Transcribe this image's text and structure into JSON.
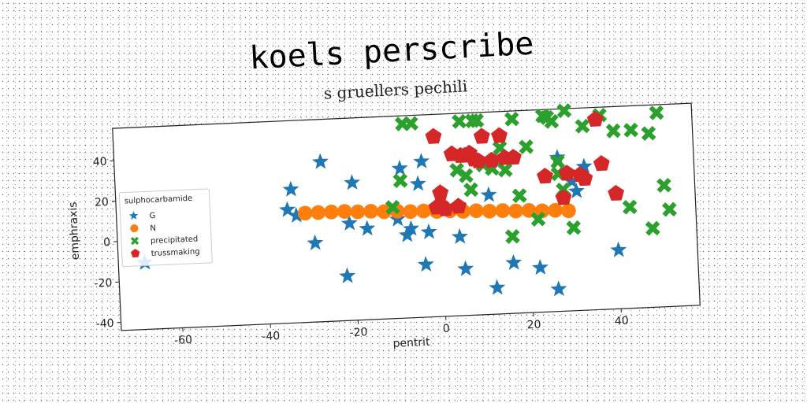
{
  "chart_data": {
    "type": "scatter",
    "title": "koels perscribe",
    "subtitle": "s gruellers pechili",
    "xlabel": "pentrit",
    "ylabel": "emphraxis",
    "xlim": [
      -74,
      58
    ],
    "ylim": [
      -44,
      56
    ],
    "x_ticks": [
      -60,
      -40,
      -20,
      0,
      20,
      40
    ],
    "y_ticks": [
      -40,
      -20,
      0,
      20,
      40
    ],
    "grid": false,
    "legend": {
      "title": "sulphocarbamide",
      "position": "center-left"
    },
    "series": [
      {
        "name": "G",
        "marker": "star",
        "color": "#1f77b4",
        "points": [
          [
            -68,
            -11
          ],
          [
            -35,
            12
          ],
          [
            -34,
            22
          ],
          [
            -33,
            9
          ],
          [
            -27,
            35
          ],
          [
            -29,
            -5
          ],
          [
            -22,
            -22
          ],
          [
            -21,
            4
          ],
          [
            -20,
            24
          ],
          [
            -17,
            1
          ],
          [
            -10,
            5
          ],
          [
            -9,
            30
          ],
          [
            -8,
            -3
          ],
          [
            -7,
            0
          ],
          [
            -5,
            22
          ],
          [
            -4,
            33
          ],
          [
            -3,
            -2
          ],
          [
            -4,
            -18
          ],
          [
            4,
            -5
          ],
          [
            5,
            -21
          ],
          [
            11,
            15
          ],
          [
            12,
            -31
          ],
          [
            16,
            -19
          ],
          [
            22,
            -22
          ],
          [
            26,
            -33
          ],
          [
            27,
            32
          ],
          [
            30,
            20
          ],
          [
            31,
            15
          ],
          [
            33,
            27
          ],
          [
            40,
            -15
          ]
        ]
      },
      {
        "name": "N",
        "marker": "circle",
        "color": "#ff7f0e",
        "points": [
          [
            -31,
            10
          ],
          [
            -28,
            10
          ],
          [
            -25,
            10
          ],
          [
            -22,
            10
          ],
          [
            -19,
            9.5
          ],
          [
            -16,
            9.5
          ],
          [
            -13,
            9
          ],
          [
            -10,
            9
          ],
          [
            -7,
            8.5
          ],
          [
            -4,
            8.5
          ],
          [
            -1,
            8
          ],
          [
            2,
            8
          ],
          [
            5,
            7.5
          ],
          [
            8,
            7.5
          ],
          [
            11,
            7
          ],
          [
            14,
            7
          ],
          [
            17,
            6.5
          ],
          [
            20,
            6.5
          ],
          [
            23,
            6
          ],
          [
            26,
            6
          ],
          [
            29,
            5.5
          ]
        ]
      },
      {
        "name": "precipitated",
        "marker": "x",
        "color": "#2ca02c",
        "points": [
          [
            -11,
            11
          ],
          [
            -9,
            24
          ],
          [
            -8,
            52
          ],
          [
            -6,
            52
          ],
          [
            4,
            28
          ],
          [
            5,
            52
          ],
          [
            6,
            25
          ],
          [
            7,
            18
          ],
          [
            8,
            52
          ],
          [
            9,
            52
          ],
          [
            10,
            30
          ],
          [
            12,
            28
          ],
          [
            13,
            32
          ],
          [
            14,
            38
          ],
          [
            15,
            27
          ],
          [
            16,
            -6
          ],
          [
            17,
            52
          ],
          [
            18,
            14
          ],
          [
            20,
            38
          ],
          [
            22,
            2
          ],
          [
            24,
            53
          ],
          [
            25,
            52
          ],
          [
            26,
            50
          ],
          [
            27,
            24
          ],
          [
            27,
            30
          ],
          [
            28,
            16
          ],
          [
            29,
            55
          ],
          [
            30,
            -3
          ],
          [
            33,
            47
          ],
          [
            37,
            52
          ],
          [
            40,
            44
          ],
          [
            43,
            6
          ],
          [
            44,
            44
          ],
          [
            48,
            -5
          ],
          [
            48,
            42
          ],
          [
            50,
            52
          ],
          [
            51,
            16
          ],
          [
            52,
            4
          ]
        ]
      },
      {
        "name": "trussmaking",
        "marker": "pentagon",
        "color": "#d62728",
        "points": [
          [
            -1,
            10
          ],
          [
            -1,
            45
          ],
          [
            0,
            11
          ],
          [
            0,
            17
          ],
          [
            1,
            9
          ],
          [
            3,
            36
          ],
          [
            4,
            10
          ],
          [
            5,
            35
          ],
          [
            6,
            35
          ],
          [
            7,
            36
          ],
          [
            8,
            33
          ],
          [
            9,
            32
          ],
          [
            10,
            44
          ],
          [
            12,
            32
          ],
          [
            14,
            44
          ],
          [
            15,
            33
          ],
          [
            17,
            33
          ],
          [
            24,
            23
          ],
          [
            28,
            12
          ],
          [
            29,
            24
          ],
          [
            32,
            23
          ],
          [
            33,
            21
          ],
          [
            36,
            50
          ],
          [
            37,
            28
          ],
          [
            40,
            13
          ]
        ]
      }
    ]
  }
}
